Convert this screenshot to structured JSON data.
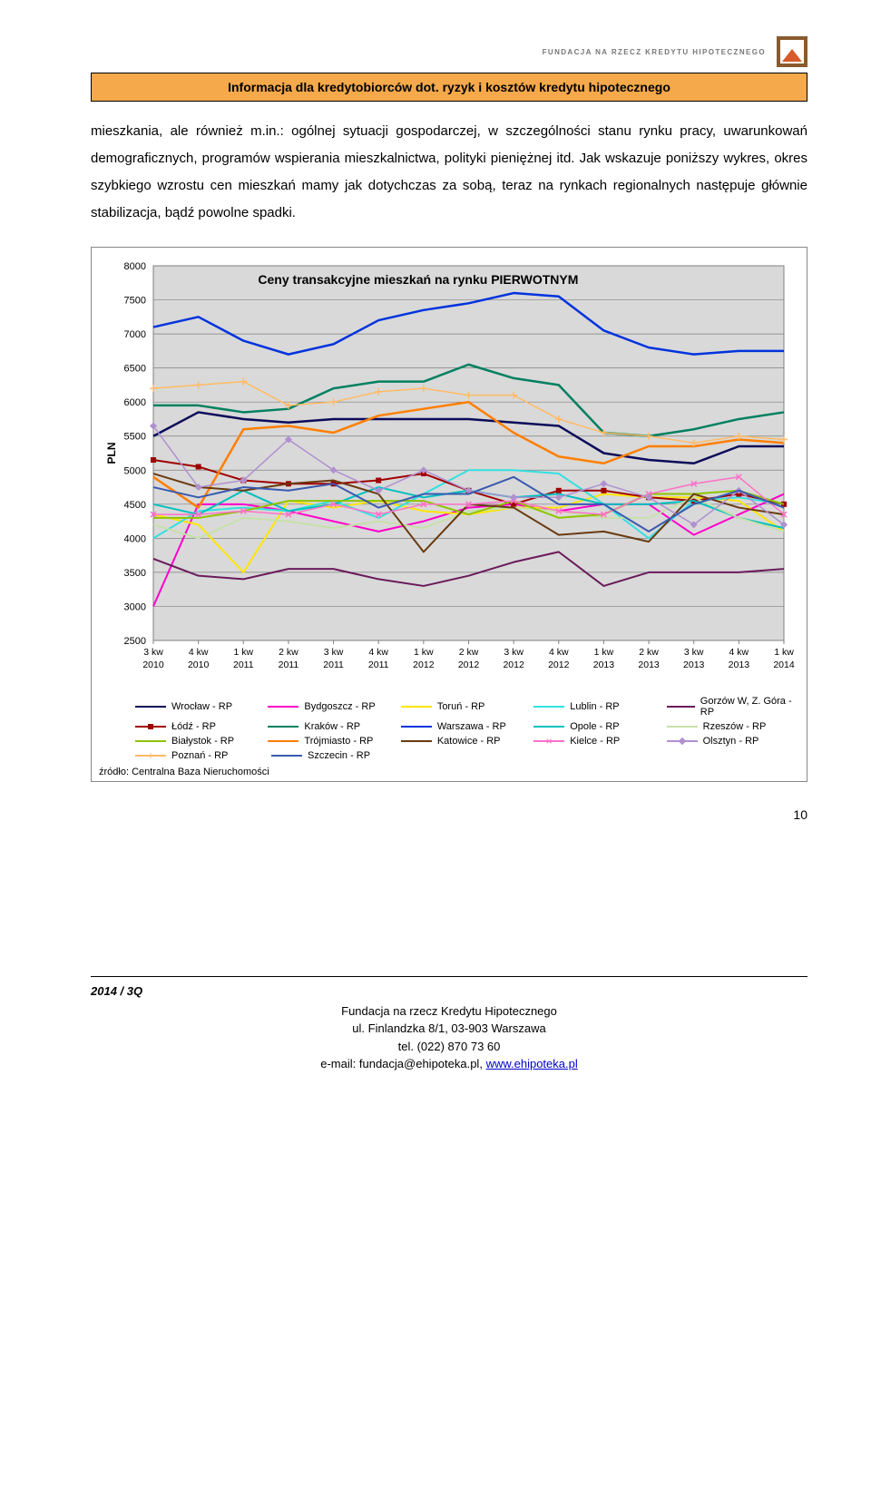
{
  "header": {
    "logo_text": "FUNDACJA NA RZECZ KREDYTU HIPOTECZNEGO",
    "title_bar": "Informacja dla kredytobiorców dot. ryzyk i kosztów kredytu hipotecznego"
  },
  "body": {
    "paragraph": "mieszkania, ale również m.in.: ogólnej sytuacji gospodarczej, w szczególności stanu rynku pracy, uwarunkowań demograficznych, programów wspierania mieszkalnictwa, polityki pieniężnej itd. Jak wskazuje poniższy wykres, okres szybkiego wzrostu cen mieszkań mamy jak dotychczas za sobą, teraz na rynkach regionalnych następuje głównie stabilizacja, bądź powolne spadki."
  },
  "chart": {
    "type": "line",
    "title": "Ceny transakcyjne mieszkań na rynku PIERWOTNYM",
    "title_fontsize": 14,
    "ylabel": "PLN",
    "label_fontsize": 12,
    "ylim": [
      2500,
      8000
    ],
    "ytick_step": 500,
    "plot_bg": "#d9d9d9",
    "grid_color": "#808080",
    "axis_color": "#808080",
    "text_color": "#000000",
    "categories": [
      "3 kw 2010",
      "4 kw 2010",
      "1 kw 2011",
      "2 kw 2011",
      "3 kw 2011",
      "4 kw 2011",
      "1 kw 2012",
      "2 kw 2012",
      "3 kw 2012",
      "4 kw 2012",
      "1 kw 2013",
      "2 kw 2013",
      "3 kw 2013",
      "4 kw 2013",
      "1 kw 2014"
    ],
    "series": [
      {
        "name": "Wrocław - RP",
        "color": "#0b0b5a",
        "marker": "none",
        "width": 2.5,
        "values": [
          5500,
          5850,
          5750,
          5700,
          5750,
          5750,
          5750,
          5750,
          5700,
          5650,
          5250,
          5150,
          5100,
          5350,
          5350
        ]
      },
      {
        "name": "Bydgoszcz - RP",
        "color": "#ff00cc",
        "marker": "none",
        "width": 2,
        "values": [
          3000,
          4500,
          4500,
          4400,
          4250,
          4100,
          4250,
          4450,
          4500,
          4400,
          4500,
          4500,
          4050,
          4350,
          4650
        ]
      },
      {
        "name": "Toruń - RP",
        "color": "#ffe600",
        "marker": "none",
        "width": 2,
        "values": [
          4350,
          4200,
          3500,
          4550,
          4450,
          4550,
          4400,
          4350,
          4450,
          4450,
          4650,
          4600,
          4600,
          4550,
          4100
        ]
      },
      {
        "name": "Lublin - RP",
        "color": "#33e0e0",
        "marker": "none",
        "width": 2,
        "values": [
          4000,
          4400,
          4450,
          4400,
          4550,
          4300,
          4650,
          5000,
          5000,
          4950,
          4500,
          4000,
          4550,
          4600,
          4500
        ]
      },
      {
        "name": "Gorzów W, Z. Góra - RP",
        "color": "#6a1a5a",
        "marker": "none",
        "width": 2,
        "values": [
          3700,
          3450,
          3400,
          3550,
          3550,
          3400,
          3300,
          3450,
          3650,
          3800,
          3300,
          3500,
          3500,
          3500,
          3550
        ]
      },
      {
        "name": "Łódź - RP",
        "color": "#a00000",
        "marker": "square",
        "width": 2,
        "values": [
          5150,
          5050,
          4850,
          4800,
          4800,
          4850,
          4950,
          4700,
          4500,
          4700,
          4700,
          4600,
          4550,
          4650,
          4500
        ]
      },
      {
        "name": "Kraków - RP",
        "color": "#008060",
        "marker": "none",
        "width": 2.5,
        "values": [
          5950,
          5950,
          5850,
          5900,
          6200,
          6300,
          6300,
          6550,
          6350,
          6250,
          5550,
          5500,
          5600,
          5750,
          5850
        ]
      },
      {
        "name": "Warszawa - RP",
        "color": "#0033dd",
        "marker": "none",
        "width": 2.5,
        "values": [
          7100,
          7250,
          6900,
          6700,
          6850,
          7200,
          7350,
          7450,
          7600,
          7550,
          7050,
          6800,
          6700,
          6750,
          6750
        ]
      },
      {
        "name": "Opole - RP",
        "color": "#00c0c0",
        "marker": "none",
        "width": 2,
        "values": [
          4500,
          4350,
          4700,
          4400,
          4500,
          4750,
          4600,
          4700,
          4600,
          4650,
          4500,
          4500,
          4550,
          4300,
          4150
        ]
      },
      {
        "name": "Rzeszów - RP",
        "color": "#c7e0a8",
        "marker": "none",
        "width": 2,
        "values": [
          4200,
          4000,
          4300,
          4250,
          4150,
          4250,
          4150,
          4400,
          4450,
          4400,
          4300,
          4300,
          4600,
          4300,
          4100
        ]
      },
      {
        "name": "Białystok - RP",
        "color": "#8ec400",
        "marker": "none",
        "width": 2,
        "values": [
          4300,
          4300,
          4400,
          4550,
          4550,
          4550,
          4550,
          4350,
          4550,
          4300,
          4350,
          4650,
          4650,
          4700,
          4500
        ]
      },
      {
        "name": "Trójmiasto - RP",
        "color": "#ff7f00",
        "marker": "none",
        "width": 2.5,
        "values": [
          4900,
          4450,
          5600,
          5650,
          5550,
          5800,
          5900,
          6000,
          5550,
          5200,
          5100,
          5350,
          5350,
          5450,
          5400
        ]
      },
      {
        "name": "Katowice - RP",
        "color": "#6a3a10",
        "marker": "none",
        "width": 2,
        "values": [
          4950,
          4750,
          4700,
          4800,
          4850,
          4650,
          3800,
          4500,
          4450,
          4050,
          4100,
          3950,
          4650,
          4450,
          4350
        ]
      },
      {
        "name": "Kielce - RP",
        "color": "#ff70c8",
        "marker": "x",
        "width": 1.5,
        "values": [
          4350,
          4350,
          4400,
          4350,
          4500,
          4350,
          4500,
          4500,
          4550,
          4400,
          4350,
          4650,
          4800,
          4900,
          4350
        ]
      },
      {
        "name": "Olsztyn - RP",
        "color": "#b090d0",
        "marker": "diamond",
        "width": 1.5,
        "values": [
          5650,
          4750,
          4850,
          5450,
          5000,
          4700,
          5000,
          4700,
          4600,
          4600,
          4800,
          4600,
          4200,
          4700,
          4200
        ]
      },
      {
        "name": "Poznań - RP",
        "color": "#ffbb66",
        "marker": "plus",
        "width": 1.5,
        "values": [
          6200,
          6250,
          6300,
          5950,
          6000,
          6150,
          6200,
          6100,
          6100,
          5750,
          5550,
          5500,
          5400,
          5500,
          5450
        ]
      },
      {
        "name": "Szczecin - RP",
        "color": "#3a5ab0",
        "marker": "none",
        "width": 2,
        "values": [
          4750,
          4600,
          4750,
          4700,
          4800,
          4450,
          4650,
          4650,
          4900,
          4500,
          4500,
          4100,
          4500,
          4700,
          4450
        ]
      }
    ],
    "legend_layout": [
      [
        "Wrocław - RP",
        "Bydgoszcz - RP",
        "Toruń - RP",
        "Lublin - RP",
        "Gorzów W, Z. Góra - RP"
      ],
      [
        "Łódź - RP",
        "Kraków - RP",
        "Warszawa - RP",
        "Opole - RP",
        "Rzeszów - RP"
      ],
      [
        "Białystok - RP",
        "Trójmiasto - RP",
        "Katowice - RP",
        "Kielce - RP",
        "Olsztyn - RP"
      ],
      [
        "Poznań - RP",
        "Szczecin - RP"
      ]
    ],
    "source": "źródło: Centralna Baza Nieruchomości"
  },
  "page_number": "10",
  "footer": {
    "year": "2014 / 3Q",
    "line1": "Fundacja na rzecz Kredytu Hipotecznego",
    "line2": "ul. Finlandzka 8/1, 03-903 Warszawa",
    "line3": "tel. (022) 870 73 60",
    "line4_pre": "e-mail: fundacja@ehipoteka.pl, ",
    "line4_link": "www.ehipoteka.pl"
  }
}
